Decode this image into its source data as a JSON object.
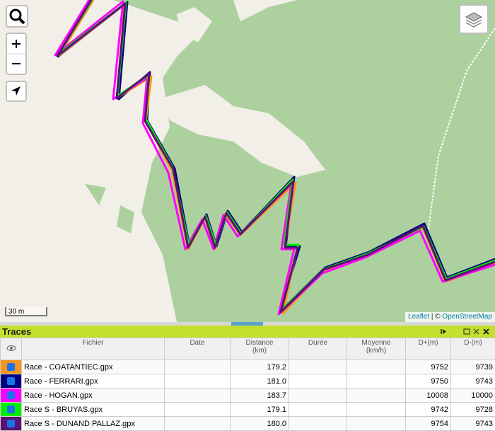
{
  "map": {
    "scale": "30 m",
    "attribution": {
      "leaflet": "Leaflet",
      "separator": "| ©",
      "osm": "OpenStreetMap"
    }
  },
  "panel": {
    "title": "Traces",
    "table": {
      "headers": [
        {
          "label": "Fichier"
        },
        {
          "label": "Date"
        },
        {
          "label": "Distance",
          "unit": "(km)"
        },
        {
          "label": "Durée"
        },
        {
          "label": "Moyenne",
          "unit": "(km/h)"
        },
        {
          "label": "D+(m)"
        },
        {
          "label": "D-(m)"
        }
      ],
      "rows": [
        {
          "color": "#f7941d",
          "name": "Race - COATANTIEC.gpx",
          "distance": "179.2",
          "dplus": "9752",
          "dminus": "9739"
        },
        {
          "color": "#000080",
          "name": "Race - FERRARI.gpx",
          "distance": "181.0",
          "dplus": "9750",
          "dminus": "9743"
        },
        {
          "color": "#ff00ff",
          "name": "Race - HOGAN.gpx",
          "distance": "183.7",
          "dplus": "10008",
          "dminus": "10000"
        },
        {
          "color": "#00ee00",
          "name": "Race S - BRUYAS.gpx",
          "distance": "179.1",
          "dplus": "9742",
          "dminus": "9728"
        },
        {
          "color": "#5b1273",
          "name": "Race S - DUNAND PALLAZ.gpx",
          "distance": "180.0",
          "dplus": "9754",
          "dminus": "9743"
        }
      ]
    }
  }
}
